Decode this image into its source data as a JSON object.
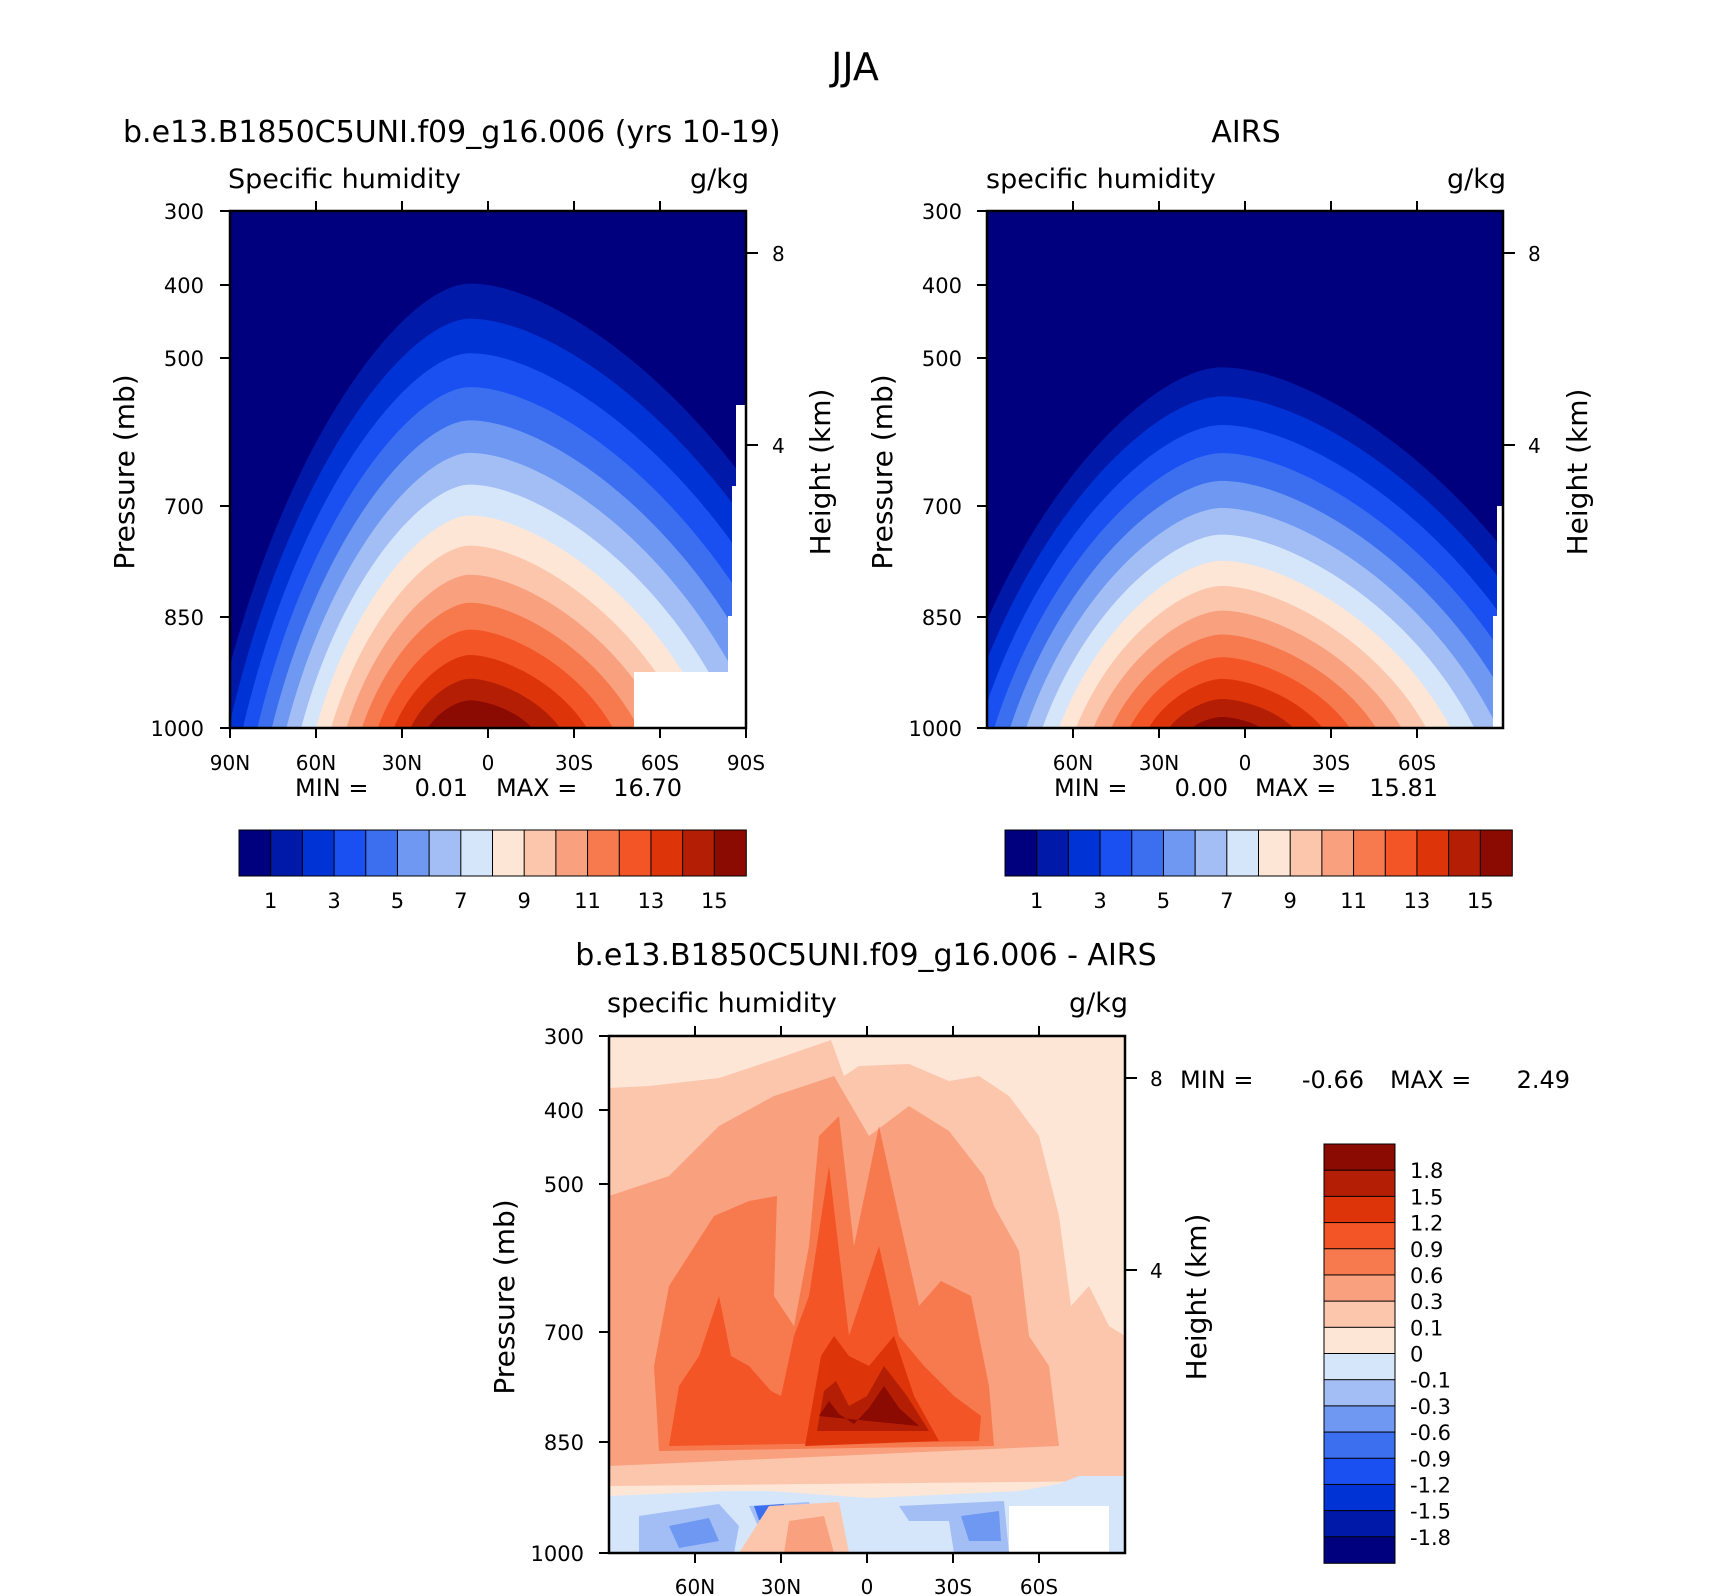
{
  "figure": {
    "title": "JJA"
  },
  "chart_data": [
    {
      "type": "heatmap",
      "title": "b.e13.B1850C5UNI.f09_g16.006 (yrs 10-19)",
      "left_label": "Specific humidity",
      "right_label": "g/kg",
      "ylabel": "Pressure (mb)",
      "y2label": "Height (km)",
      "y_ticks": [
        "300",
        "400",
        "500",
        "700",
        "850",
        "1000"
      ],
      "y2_ticks": [
        "8",
        "4"
      ],
      "x_ticks": [
        "90N",
        "60N",
        "30N",
        "0",
        "30S",
        "60S",
        "90S"
      ],
      "min_label": "MIN =",
      "min_value": "0.01",
      "max_label": "MAX =",
      "max_value": "16.70",
      "colorbar_labels": [
        "1",
        "3",
        "5",
        "7",
        "9",
        "11",
        "13",
        "15"
      ],
      "colors": [
        "#00007f",
        "#0019a8",
        "#0033d6",
        "#1a50f2",
        "#3c6ef0",
        "#6e98f2",
        "#a2bef5",
        "#d6e6fa",
        "#fde6d6",
        "#fcc6ad",
        "#f9a07f",
        "#f77a4f",
        "#f35526",
        "#dd3409",
        "#b41e05",
        "#8b0a02"
      ],
      "peak_value": 16.7
    },
    {
      "type": "heatmap",
      "title": "AIRS",
      "left_label": "specific humidity",
      "right_label": "g/kg",
      "ylabel": "Pressure (mb)",
      "y2label": "Height (km)",
      "y_ticks": [
        "300",
        "400",
        "500",
        "700",
        "850",
        "1000"
      ],
      "y2_ticks": [
        "8",
        "4"
      ],
      "x_ticks": [
        "60N",
        "30N",
        "0",
        "30S",
        "60S"
      ],
      "min_label": "MIN =",
      "min_value": "0.00",
      "max_label": "MAX =",
      "max_value": "15.81",
      "colorbar_labels": [
        "1",
        "3",
        "5",
        "7",
        "9",
        "11",
        "13",
        "15"
      ],
      "colors": [
        "#00007f",
        "#0019a8",
        "#0033d6",
        "#1a50f2",
        "#3c6ef0",
        "#6e98f2",
        "#a2bef5",
        "#d6e6fa",
        "#fde6d6",
        "#fcc6ad",
        "#f9a07f",
        "#f77a4f",
        "#f35526",
        "#dd3409",
        "#b41e05",
        "#8b0a02"
      ],
      "peak_value": 15.81
    },
    {
      "type": "heatmap",
      "title": "b.e13.B1850C5UNI.f09_g16.006 - AIRS",
      "left_label": "specific humidity",
      "right_label": "g/kg",
      "ylabel": "Pressure (mb)",
      "y2label": "Height (km)",
      "y_ticks": [
        "300",
        "400",
        "500",
        "700",
        "850",
        "1000"
      ],
      "y2_ticks": [
        "8",
        "4"
      ],
      "x_ticks": [
        "60N",
        "30N",
        "0",
        "30S",
        "60S"
      ],
      "min_label": "MIN =",
      "min_value": "-0.66",
      "max_label": "MAX =",
      "max_value": "2.49",
      "colorbar_labels": [
        "1.8",
        "1.5",
        "1.2",
        "0.9",
        "0.6",
        "0.3",
        "0.1",
        "0",
        "-0.1",
        "-0.3",
        "-0.6",
        "-0.9",
        "-1.2",
        "-1.5",
        "-1.8"
      ],
      "colors": [
        "#8b0a02",
        "#b41e05",
        "#dd3409",
        "#f35526",
        "#f77a4f",
        "#f9a07f",
        "#fcc6ad",
        "#fde6d6",
        "#d6e6fa",
        "#a2bef5",
        "#6e98f2",
        "#3c6ef0",
        "#1a50f2",
        "#0033d6",
        "#0019a8",
        "#00007f"
      ]
    }
  ]
}
